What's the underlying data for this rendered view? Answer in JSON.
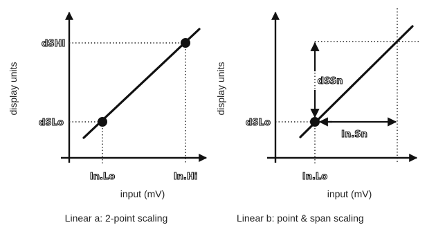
{
  "diagrams": [
    {
      "id": "a",
      "y_axis_label": "display units",
      "x_axis_label": "input (mV)",
      "caption": "Linear a: 2-point scaling",
      "y_markers": [
        "dSHI",
        "dSLo"
      ],
      "x_markers": [
        "In.Lo",
        "In.Hi"
      ]
    },
    {
      "id": "b",
      "y_axis_label": "display units",
      "x_axis_label": "input (mV)",
      "caption": "Linear b: point & span scaling",
      "y_markers": [
        "dSLo"
      ],
      "x_markers": [
        "In.Lo"
      ],
      "span_labels": {
        "display_span": "dSSn",
        "input_span": "In.Sn"
      }
    }
  ]
}
